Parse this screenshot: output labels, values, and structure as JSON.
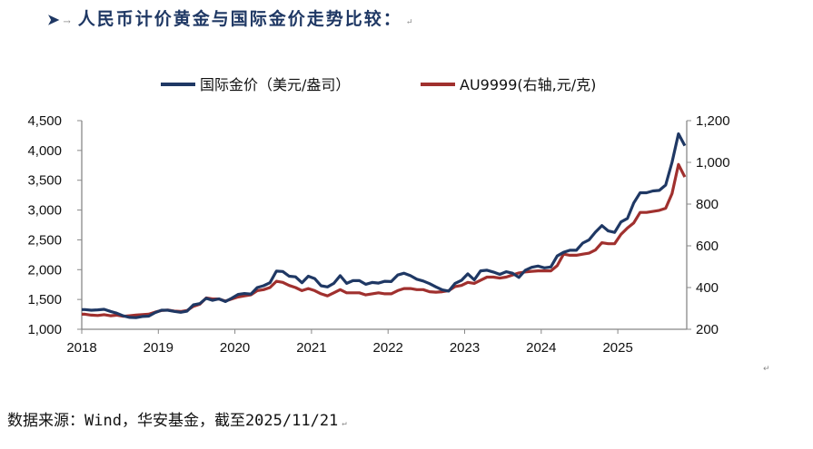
{
  "heading": {
    "bullet_icon": "arrow-bullet-icon",
    "tab_mark": "→",
    "text": "人民币计价黄金与国际金价走势比较：",
    "return_mark": "↵"
  },
  "footer": {
    "text": "数据来源：Wind，华安基金，截至2025/11/21",
    "return_mark": "↵"
  },
  "stray_mark": "↵",
  "chart_data": {
    "type": "line",
    "title": "",
    "legend_position": "top",
    "grid": false,
    "x_tick_labels": [
      "2018",
      "2019",
      "2020",
      "2021",
      "2022",
      "2023",
      "2024",
      "2025"
    ],
    "x_range": [
      2018,
      2025.9
    ],
    "left_axis": {
      "range": [
        1000,
        4500
      ],
      "ticks": [
        "1,000",
        "1,500",
        "2,000",
        "2,500",
        "3,000",
        "3,500",
        "4,000",
        "4,500"
      ]
    },
    "right_axis": {
      "range": [
        200,
        1200
      ],
      "ticks": [
        "200",
        "400",
        "600",
        "800",
        "1,000",
        "1,200"
      ]
    },
    "series": [
      {
        "name": "国际金价（美元/盎司）",
        "axis": "left",
        "color": "#1f3864",
        "start": "2018-01",
        "frequency": "monthly",
        "values": [
          1330,
          1320,
          1325,
          1335,
          1300,
          1270,
          1225,
          1200,
          1195,
          1215,
          1220,
          1280,
          1320,
          1320,
          1300,
          1285,
          1305,
          1410,
          1430,
          1520,
          1485,
          1510,
          1465,
          1520,
          1585,
          1600,
          1590,
          1700,
          1730,
          1780,
          1975,
          1970,
          1890,
          1880,
          1780,
          1890,
          1850,
          1730,
          1710,
          1770,
          1900,
          1770,
          1815,
          1815,
          1755,
          1785,
          1775,
          1805,
          1800,
          1910,
          1940,
          1900,
          1840,
          1810,
          1765,
          1710,
          1660,
          1640,
          1770,
          1820,
          1930,
          1830,
          1980,
          1990,
          1960,
          1920,
          1965,
          1940,
          1870,
          1990,
          2040,
          2060,
          2030,
          2045,
          2230,
          2290,
          2325,
          2325,
          2445,
          2500,
          2630,
          2740,
          2650,
          2625,
          2800,
          2860,
          3120,
          3290,
          3290,
          3320,
          3330,
          3420,
          3800,
          4280,
          4080
        ]
      },
      {
        "name": "AU9999(右轴,元/克)",
        "axis": "right",
        "color": "#a0302e",
        "start": "2018-01",
        "frequency": "monthly",
        "values": [
          272,
          268,
          266,
          270,
          265,
          268,
          262,
          265,
          268,
          270,
          272,
          282,
          290,
          292,
          287,
          285,
          290,
          310,
          320,
          350,
          345,
          345,
          335,
          345,
          355,
          360,
          365,
          385,
          390,
          400,
          430,
          425,
          410,
          400,
          385,
          395,
          385,
          370,
          360,
          375,
          390,
          375,
          375,
          375,
          365,
          370,
          375,
          370,
          370,
          385,
          395,
          395,
          390,
          390,
          380,
          378,
          380,
          385,
          405,
          410,
          425,
          420,
          435,
          450,
          450,
          445,
          450,
          460,
          470,
          475,
          478,
          480,
          480,
          480,
          505,
          560,
          555,
          555,
          560,
          565,
          580,
          615,
          610,
          610,
          655,
          685,
          710,
          760,
          760,
          765,
          770,
          780,
          850,
          990,
          930
        ]
      }
    ]
  }
}
